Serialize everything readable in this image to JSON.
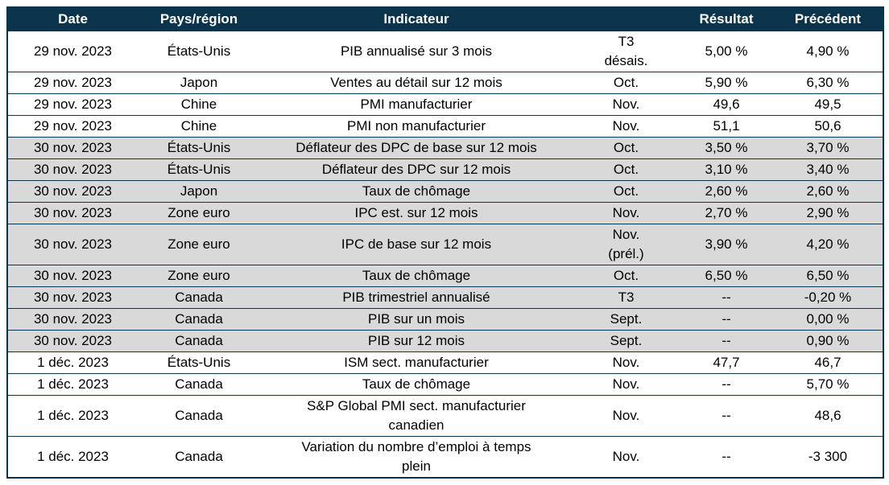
{
  "colors": {
    "header_bg": "#0a344b",
    "header_text": "#ffffff",
    "shaded_row_bg": "#d9d9d9",
    "row_bg": "#ffffff",
    "border": "#0a344b"
  },
  "table": {
    "columns": [
      {
        "key": "date",
        "label": "Date"
      },
      {
        "key": "region",
        "label": "Pays/région"
      },
      {
        "key": "indicator",
        "label": "Indicateur"
      },
      {
        "key": "period",
        "label": ""
      },
      {
        "key": "result",
        "label": "Résultat"
      },
      {
        "key": "previous",
        "label": "Précédent"
      }
    ],
    "rows": [
      {
        "date": "29 nov. 2023",
        "region": "États-Unis",
        "indicator": "PIB annualisé sur 3 mois",
        "period": "T3\ndésais.",
        "result": "5,00 %",
        "previous": "4,90 %",
        "shaded": false
      },
      {
        "date": "29 nov. 2023",
        "region": "Japon",
        "indicator": "Ventes au détail sur 12 mois",
        "period": "Oct.",
        "result": "5,90 %",
        "previous": "6,30 %",
        "shaded": false
      },
      {
        "date": "29 nov. 2023",
        "region": "Chine",
        "indicator": "PMI manufacturier",
        "period": "Nov.",
        "result": "49,6",
        "previous": "49,5",
        "shaded": false
      },
      {
        "date": "29 nov. 2023",
        "region": "Chine",
        "indicator": "PMI non manufacturier",
        "period": "Nov.",
        "result": "51,1",
        "previous": "50,6",
        "shaded": false
      },
      {
        "date": "30 nov. 2023",
        "region": "États-Unis",
        "indicator": "Déflateur des DPC de base sur 12 mois",
        "period": "Oct.",
        "result": "3,50 %",
        "previous": "3,70 %",
        "shaded": true
      },
      {
        "date": "30 nov. 2023",
        "region": "États-Unis",
        "indicator": "Déflateur des DPC sur 12 mois",
        "period": "Oct.",
        "result": "3,10 %",
        "previous": "3,40 %",
        "shaded": true
      },
      {
        "date": "30 nov. 2023",
        "region": "Japon",
        "indicator": "Taux de chômage",
        "period": "Oct.",
        "result": "2,60 %",
        "previous": "2,60 %",
        "shaded": true
      },
      {
        "date": "30 nov. 2023",
        "region": "Zone euro",
        "indicator": "IPC est. sur 12 mois",
        "period": "Nov.",
        "result": "2,70 %",
        "previous": "2,90 %",
        "shaded": true
      },
      {
        "date": "30 nov. 2023",
        "region": "Zone euro",
        "indicator": "IPC de base sur 12 mois",
        "period": "Nov.\n(prél.)",
        "result": "3,90 %",
        "previous": "4,20 %",
        "shaded": true
      },
      {
        "date": "30 nov. 2023",
        "region": "Zone euro",
        "indicator": "Taux de chômage",
        "period": "Oct.",
        "result": "6,50 %",
        "previous": "6,50 %",
        "shaded": true
      },
      {
        "date": "30 nov. 2023",
        "region": "Canada",
        "indicator": "PIB trimestriel annualisé",
        "period": "T3",
        "result": "--",
        "previous": "-0,20 %",
        "shaded": true
      },
      {
        "date": "30 nov. 2023",
        "region": "Canada",
        "indicator": "PIB sur un mois",
        "period": "Sept.",
        "result": "--",
        "previous": "0,00 %",
        "shaded": true
      },
      {
        "date": "30 nov. 2023",
        "region": "Canada",
        "indicator": "PIB sur 12 mois",
        "period": "Sept.",
        "result": "--",
        "previous": "0,90 %",
        "shaded": true
      },
      {
        "date": "1 déc. 2023",
        "region": "États-Unis",
        "indicator": "ISM sect. manufacturier",
        "period": "Nov.",
        "result": "47,7",
        "previous": "46,7",
        "shaded": false
      },
      {
        "date": "1 déc. 2023",
        "region": "Canada",
        "indicator": "Taux de chômage",
        "period": "Nov.",
        "result": "--",
        "previous": "5,70 %",
        "shaded": false
      },
      {
        "date": "1 déc. 2023",
        "region": "Canada",
        "indicator": "S&P Global PMI sect. manufacturier\ncanadien",
        "period": "Nov.",
        "result": "--",
        "previous": "48,6",
        "shaded": false
      },
      {
        "date": "1 déc. 2023",
        "region": "Canada",
        "indicator": "Variation du nombre d’emploi à temps\nplein",
        "period": "Nov.",
        "result": "--",
        "previous": "-3 300",
        "shaded": false
      }
    ]
  }
}
